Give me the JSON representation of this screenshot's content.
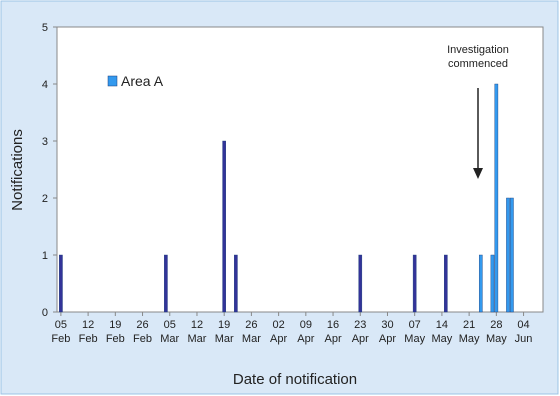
{
  "chart_data": {
    "type": "bar",
    "x_label": "Date of notification",
    "y_label": "Notifications",
    "annotation": "Investigation commenced",
    "xlim": [
      "04 Feb",
      "09 Jun"
    ],
    "xticks": [
      "05 Feb",
      "12 Feb",
      "19 Feb",
      "26 Feb",
      "05 Mar",
      "12 Mar",
      "19 Mar",
      "26 Mar",
      "02 Apr",
      "09 Apr",
      "16 Apr",
      "23 Apr",
      "30 Apr",
      "07 May",
      "14 May",
      "21 May",
      "28 May",
      "04 Jun"
    ],
    "ylim": [
      0,
      5
    ],
    "yticks": [
      0,
      1,
      2,
      3,
      4,
      5
    ],
    "legend": "upper left",
    "series": [
      {
        "color": "#333399",
        "x": [
          "05 Feb",
          "04 Mar",
          "19 Mar",
          "22 Mar",
          "23 Apr",
          "07 May",
          "15 May"
        ],
        "values": [
          1,
          1,
          3,
          1,
          1,
          1,
          1
        ]
      },
      {
        "name": "Area A",
        "color": "#3399ee",
        "x": [
          "24 May",
          "27 May",
          "28 May",
          "31 May",
          "01 Jun"
        ],
        "values": [
          1,
          1,
          4,
          2,
          2
        ]
      }
    ]
  }
}
